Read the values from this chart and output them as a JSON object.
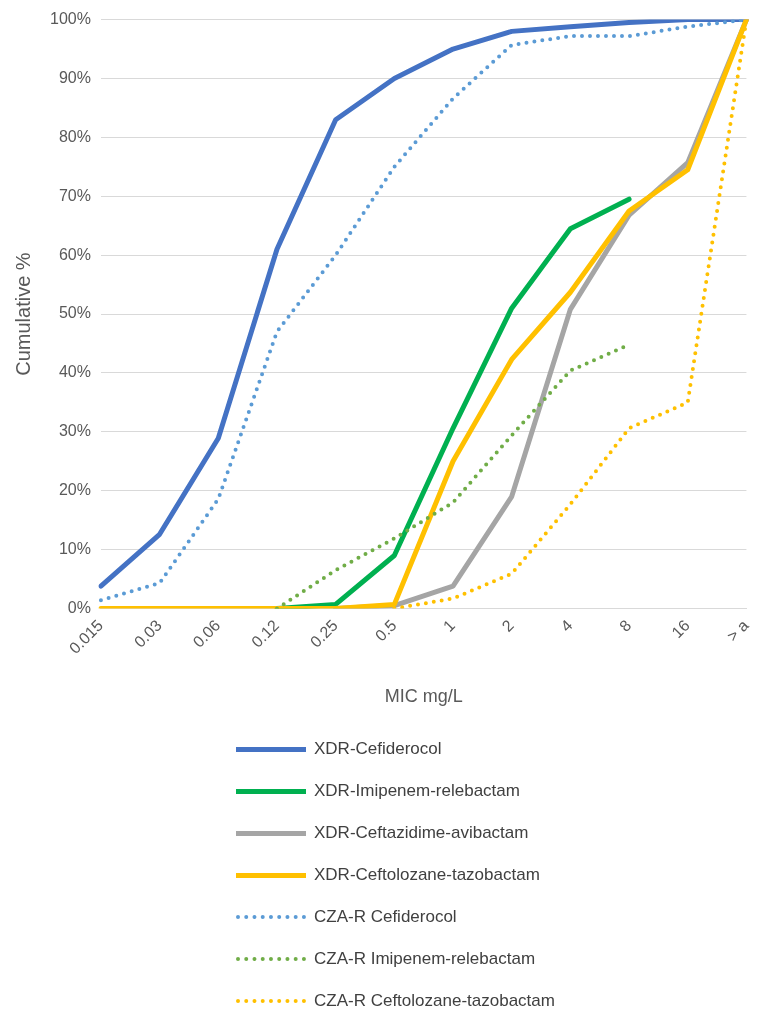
{
  "chart_data": {
    "type": "line",
    "xlabel": "MIC mg/L",
    "ylabel": "Cumulative %",
    "categories": [
      "0.015",
      "0.03",
      "0.06",
      "0.12",
      "0.25",
      "0.5",
      "1",
      "2",
      "4",
      "8",
      "16",
      "> a"
    ],
    "ylim": [
      0,
      100
    ],
    "yticks": [
      {
        "value": 0,
        "label": "0%"
      },
      {
        "value": 10,
        "label": "10%"
      },
      {
        "value": 20,
        "label": "20%"
      },
      {
        "value": 30,
        "label": "30%"
      },
      {
        "value": 40,
        "label": "40%"
      },
      {
        "value": 50,
        "label": "50%"
      },
      {
        "value": 60,
        "label": "60%"
      },
      {
        "value": 70,
        "label": "70%"
      },
      {
        "value": 80,
        "label": "80%"
      },
      {
        "value": 90,
        "label": "90%"
      },
      {
        "value": 100,
        "label": "100%"
      }
    ],
    "grid": "y",
    "legend": "bottom",
    "marker": "none",
    "series": [
      {
        "name": "XDR-Cefiderocol",
        "color": "#4472c4",
        "line_style": "solid",
        "values": [
          3.8,
          12.6,
          28.9,
          61,
          83,
          90,
          95,
          98,
          98.8,
          99.5,
          100,
          100
        ]
      },
      {
        "name": "XDR-Imipenem-relebactam",
        "color": "#00b050",
        "line_style": "solid",
        "values": [
          null,
          null,
          null,
          0,
          0.7,
          9,
          30.6,
          51,
          64.5,
          69.5,
          null,
          null
        ]
      },
      {
        "name": "XDR-Ceftazidime-avibactam",
        "color": "#a5a5a5",
        "line_style": "solid",
        "values": [
          null,
          null,
          null,
          null,
          0,
          0.5,
          3.8,
          19,
          50.8,
          66.8,
          75.7,
          100
        ]
      },
      {
        "name": "XDR-Ceftolozane-tazobactam",
        "color": "#ffc000",
        "line_style": "solid",
        "values": [
          0,
          0,
          0,
          0,
          0,
          0.7,
          25,
          42.3,
          53.7,
          67.5,
          74.5,
          100
        ]
      },
      {
        "name": "CZA-R Cefiderocol",
        "color": "#5b9bd5",
        "line_style": "dotted",
        "values": [
          1.4,
          4.3,
          18.6,
          47,
          60,
          75,
          86.6,
          95.7,
          97.2,
          97.2,
          98.8,
          100
        ]
      },
      {
        "name": "CZA-R Imipenem-relebactam",
        "color": "#70ad47",
        "line_style": "dotted",
        "values": [
          null,
          null,
          null,
          0,
          6.5,
          11.9,
          18,
          29.4,
          40.4,
          44.8,
          null,
          null
        ]
      },
      {
        "name": "CZA-R Ceftolozane-tazobactam",
        "color": "#ffc000",
        "line_style": "dotted",
        "values": [
          null,
          null,
          null,
          null,
          null,
          0,
          1.7,
          5.9,
          17.7,
          30.6,
          35,
          100
        ]
      }
    ]
  }
}
